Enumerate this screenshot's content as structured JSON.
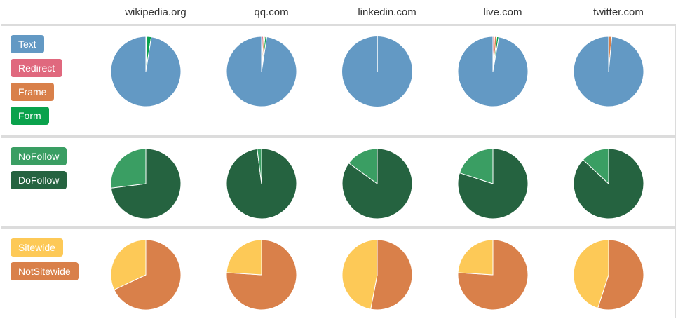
{
  "columns": [
    "wikipedia.org",
    "qq.com",
    "linkedin.com",
    "live.com",
    "twitter.com"
  ],
  "legends": {
    "row1": [
      {
        "label": "Text",
        "color": "#6399c4"
      },
      {
        "label": "Redirect",
        "color": "#e0687e"
      },
      {
        "label": "Frame",
        "color": "#d9804a"
      },
      {
        "label": "Form",
        "color": "#0aa24c"
      }
    ],
    "row2": [
      {
        "label": "NoFollow",
        "color": "#3a9e63"
      },
      {
        "label": "DoFollow",
        "color": "#256340"
      }
    ],
    "row3": [
      {
        "label": "Sitewide",
        "color": "#fdc957"
      },
      {
        "label": "NotSitewide",
        "color": "#d9804a"
      }
    ]
  },
  "chart_data": [
    {
      "type": "pie",
      "title": "",
      "categories": [
        "Text",
        "Redirect",
        "Frame",
        "Form"
      ],
      "colors": [
        "#6399c4",
        "#e0687e",
        "#d9804a",
        "#0aa24c"
      ],
      "series": [
        {
          "name": "wikipedia.org",
          "values": [
            97.5,
            0.2,
            0.3,
            2.0
          ]
        },
        {
          "name": "qq.com",
          "values": [
            97.6,
            0.8,
            0.8,
            0.8
          ]
        },
        {
          "name": "linkedin.com",
          "values": [
            100,
            0,
            0,
            0
          ]
        },
        {
          "name": "live.com",
          "values": [
            97.3,
            0.8,
            1.0,
            0.9
          ]
        },
        {
          "name": "twitter.com",
          "values": [
            98.5,
            0,
            1.5,
            0
          ]
        }
      ]
    },
    {
      "type": "pie",
      "title": "",
      "categories": [
        "NoFollow",
        "DoFollow"
      ],
      "colors": [
        "#3a9e63",
        "#256340"
      ],
      "series": [
        {
          "name": "wikipedia.org",
          "values": [
            27,
            73
          ]
        },
        {
          "name": "qq.com",
          "values": [
            2,
            98
          ]
        },
        {
          "name": "linkedin.com",
          "values": [
            15,
            85
          ]
        },
        {
          "name": "live.com",
          "values": [
            20,
            80
          ]
        },
        {
          "name": "twitter.com",
          "values": [
            13,
            87
          ]
        }
      ]
    },
    {
      "type": "pie",
      "title": "",
      "categories": [
        "Sitewide",
        "NotSitewide"
      ],
      "colors": [
        "#fdc957",
        "#d9804a"
      ],
      "series": [
        {
          "name": "wikipedia.org",
          "values": [
            32,
            68
          ]
        },
        {
          "name": "qq.com",
          "values": [
            24,
            76
          ]
        },
        {
          "name": "linkedin.com",
          "values": [
            47,
            53
          ]
        },
        {
          "name": "live.com",
          "values": [
            24,
            76
          ]
        },
        {
          "name": "twitter.com",
          "values": [
            45,
            55
          ]
        }
      ]
    }
  ]
}
